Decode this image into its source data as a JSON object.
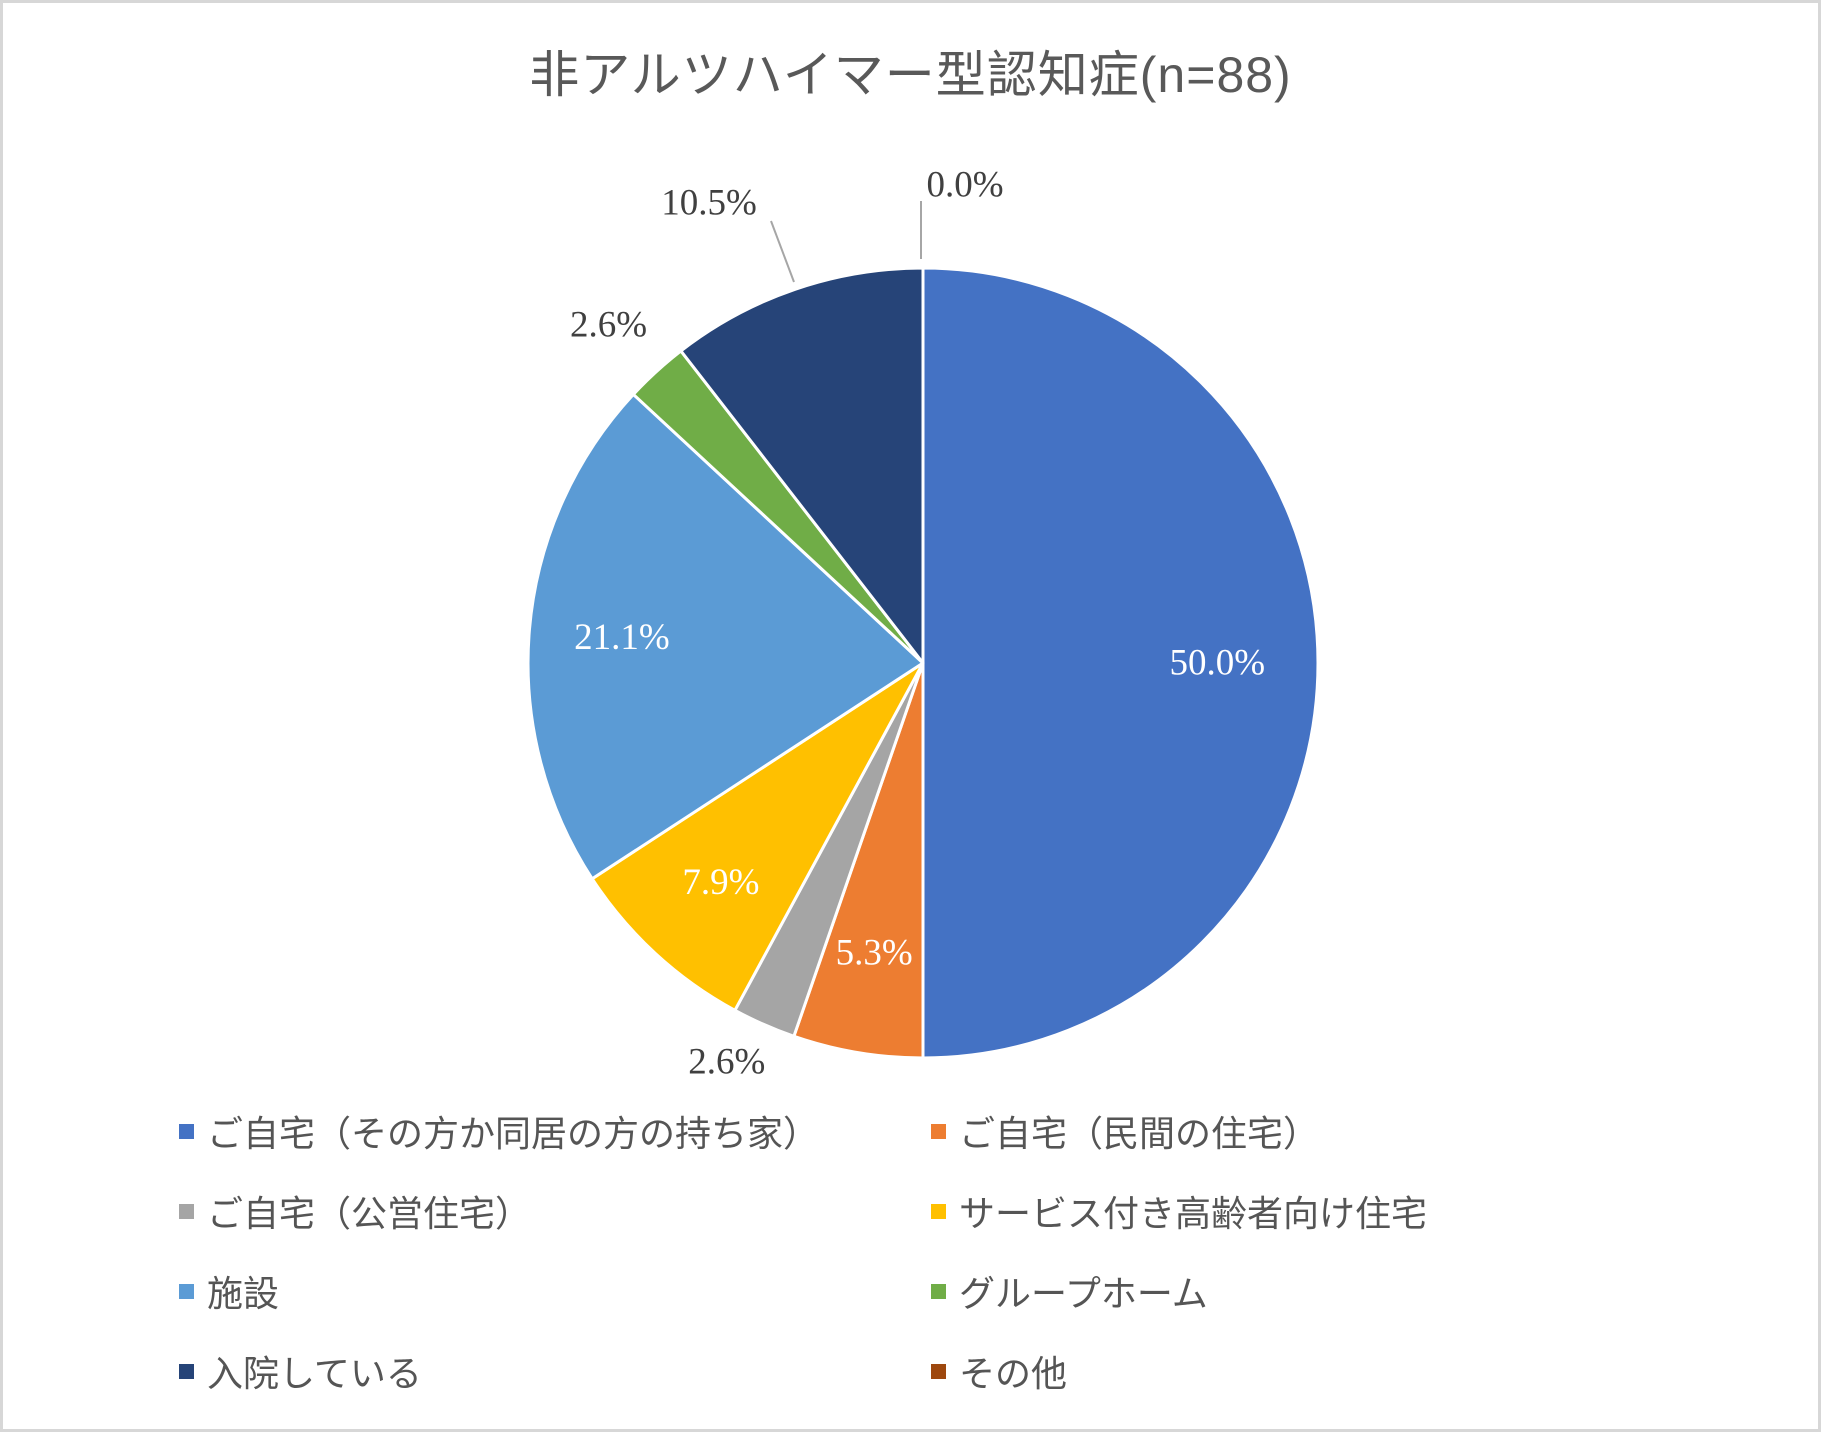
{
  "title": "非アルツハイマー型認知症(n=88)",
  "chart_data": {
    "type": "pie",
    "title": "非アルツハイマー型認知症(n=88)",
    "sample_size_n": 88,
    "start_angle_deg": 0,
    "direction": "clockwise",
    "legend_position": "bottom",
    "legend_columns": 2,
    "slices": [
      {
        "label": "ご自宅（その方か同居の方の持ち家）",
        "value_pct": 50.0,
        "display": "50.0%",
        "color": "#4472C4",
        "label_position": "inside"
      },
      {
        "label": "ご自宅（民間の住宅）",
        "value_pct": 5.3,
        "display": "5.3%",
        "color": "#ED7D31",
        "label_position": "inside"
      },
      {
        "label": "ご自宅（公営住宅）",
        "value_pct": 2.6,
        "display": "2.6%",
        "color": "#A5A5A5",
        "label_position": "outside"
      },
      {
        "label": "サービス付き高齢者向け住宅",
        "value_pct": 7.9,
        "display": "7.9%",
        "color": "#FFC000",
        "label_position": "inside"
      },
      {
        "label": "施設",
        "value_pct": 21.1,
        "display": "21.1%",
        "color": "#5B9BD5",
        "label_position": "inside"
      },
      {
        "label": "グループホーム",
        "value_pct": 2.6,
        "display": "2.6%",
        "color": "#70AD47",
        "label_position": "outside"
      },
      {
        "label": "入院している",
        "value_pct": 10.5,
        "display": "10.5%",
        "color": "#264478",
        "label_position": "outside-leader"
      },
      {
        "label": "その他",
        "value_pct": 0.0,
        "display": "0.0%",
        "color": "#9E480E",
        "label_position": "outside-leader"
      }
    ]
  },
  "colors": {
    "label_inside": "#FFFFFF",
    "label_outside": "#404040",
    "title_text": "#595959",
    "legend_text": "#555555",
    "leader_line": "#A6A6A6",
    "frame_border": "#D7D7D7",
    "background": "#FFFFFF"
  }
}
